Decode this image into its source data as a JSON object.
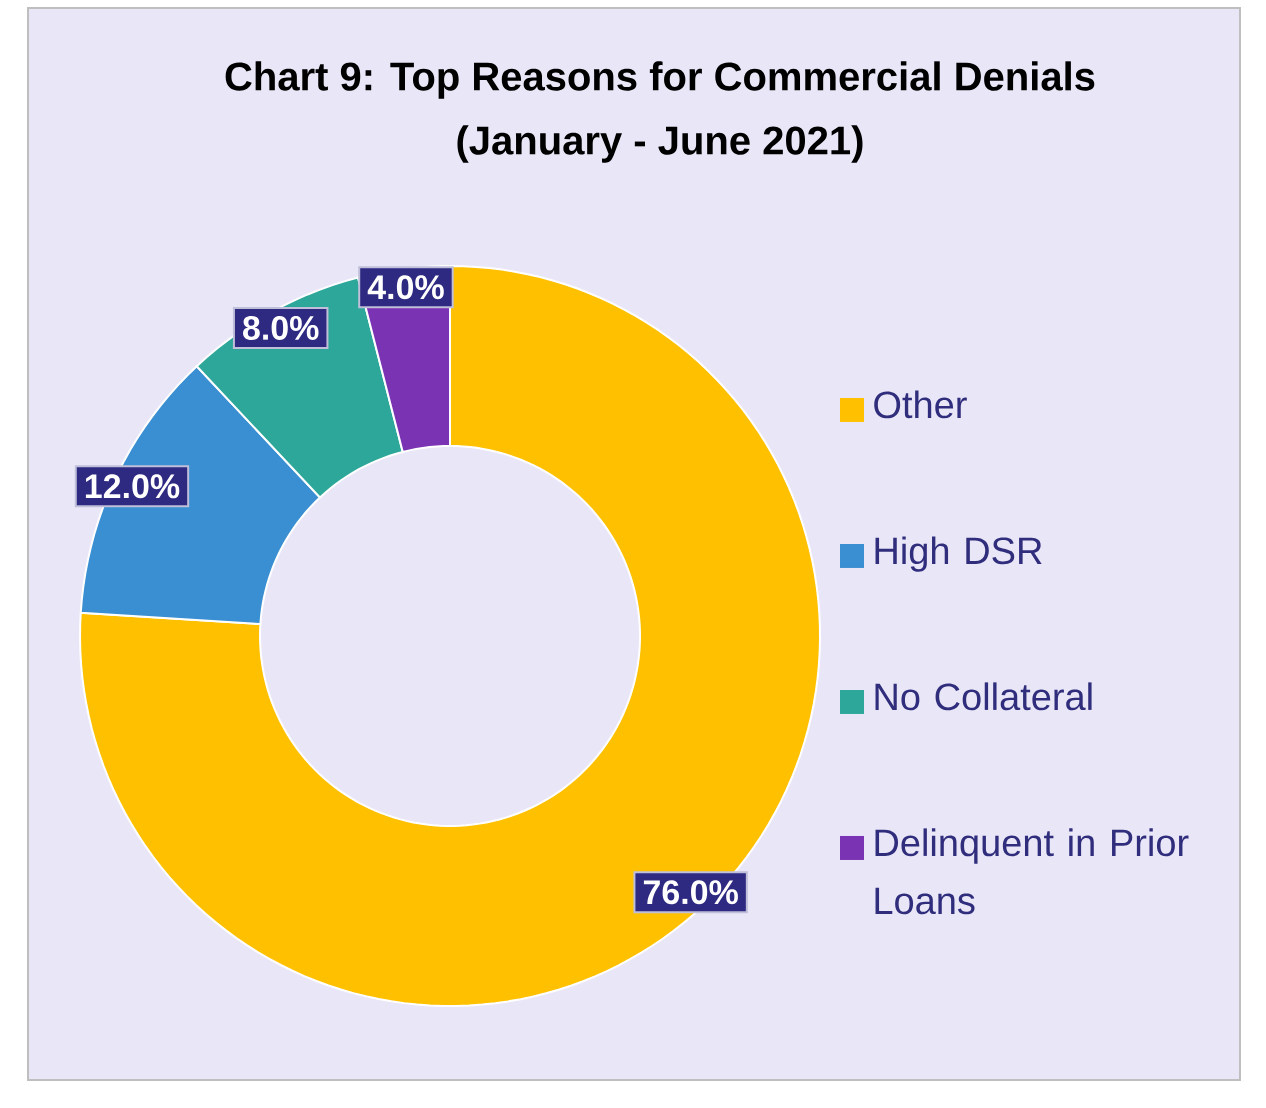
{
  "chart_data": {
    "type": "donut",
    "title": "Chart 9: Top Reasons for Commercial Denials",
    "subtitle": "(January - June 2021)",
    "categories": [
      "Other",
      "High DSR",
      "No Collateral",
      "Delinquent in Prior Loans"
    ],
    "values": [
      76,
      12,
      8,
      4
    ],
    "value_labels": [
      "76.0%",
      "12.0%",
      "8.0%",
      "4.0%"
    ],
    "colors": [
      "#ffc000",
      "#3a8fd2",
      "#2ea79b",
      "#7a33b3"
    ],
    "legend": "right"
  }
}
